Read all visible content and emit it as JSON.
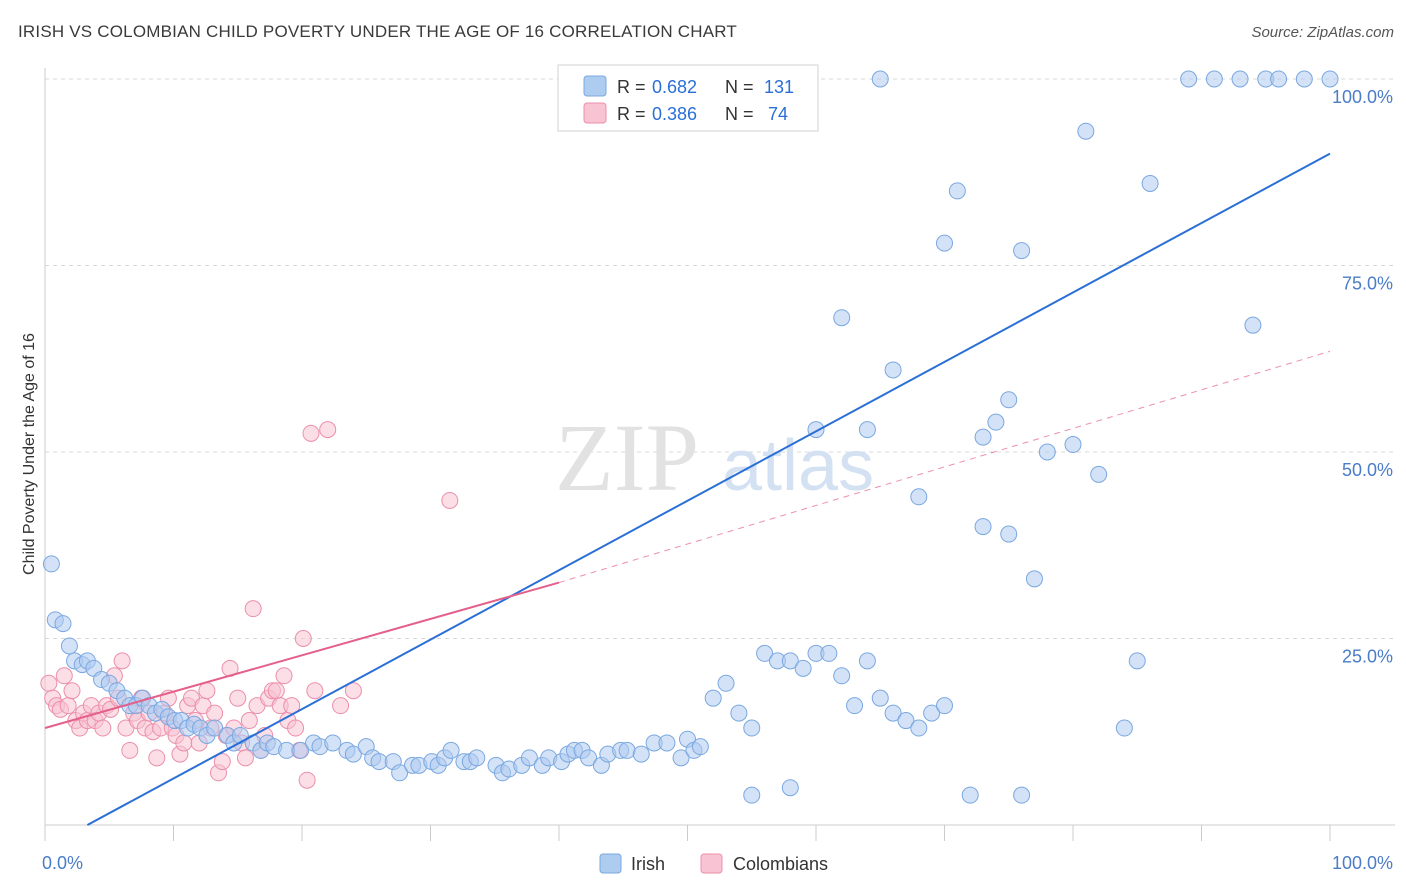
{
  "title": "IRISH VS COLOMBIAN CHILD POVERTY UNDER THE AGE OF 16 CORRELATION CHART",
  "source": "Source: ZipAtlas.com",
  "watermark": {
    "zip": "ZIP",
    "atlas": "atlas"
  },
  "colors": {
    "irish_fill": "#aecbf0",
    "irish_stroke": "#7aa8e0",
    "irish_line": "#2a6fd6",
    "colombian_fill": "#f8c3d2",
    "colombian_stroke": "#ec8fab",
    "colombian_line": "#e4608a",
    "tick_label": "#4a7cc7",
    "grid": "#d8d8d8"
  },
  "legend": {
    "r_label": "R =",
    "n_label": "N =",
    "rows": [
      {
        "r": "0.682",
        "n": "131"
      },
      {
        "r": "0.386",
        "n": "74"
      }
    ]
  },
  "chart_data": {
    "type": "scatter",
    "title": "IRISH VS COLOMBIAN CHILD POVERTY UNDER THE AGE OF 16 CORRELATION CHART",
    "xlabel": "",
    "ylabel": "Child Poverty Under the Age of 16",
    "xlim": [
      0,
      100
    ],
    "ylim": [
      0,
      100
    ],
    "x_tick_labels": [
      "0.0%",
      "100.0%"
    ],
    "y_tick_labels": [
      "100.0%",
      "75.0%",
      "50.0%",
      "25.0%"
    ],
    "y_ticks": [
      100,
      75,
      50,
      25
    ],
    "grid": true,
    "legend_position": "top-center",
    "series": [
      {
        "name": "Irish",
        "trend": {
          "x": [
            3.3,
            100
          ],
          "y": [
            0,
            90
          ]
        },
        "points": [
          [
            0.5,
            35
          ],
          [
            0.8,
            27.5
          ],
          [
            1.4,
            27
          ],
          [
            1.9,
            24
          ],
          [
            2.3,
            22
          ],
          [
            2.9,
            21.5
          ],
          [
            3.3,
            22
          ],
          [
            3.8,
            21
          ],
          [
            4.4,
            19.5
          ],
          [
            5,
            19
          ],
          [
            5.6,
            18
          ],
          [
            6.2,
            17
          ],
          [
            6.6,
            16
          ],
          [
            7.1,
            16
          ],
          [
            7.6,
            17
          ],
          [
            8.1,
            16
          ],
          [
            8.6,
            15
          ],
          [
            9.1,
            15.5
          ],
          [
            9.6,
            14.5
          ],
          [
            10.1,
            14
          ],
          [
            10.6,
            14
          ],
          [
            11.1,
            13
          ],
          [
            11.6,
            13.5
          ],
          [
            12.1,
            13
          ],
          [
            12.6,
            12
          ],
          [
            13.2,
            13
          ],
          [
            14.2,
            12
          ],
          [
            14.7,
            11
          ],
          [
            15.2,
            12
          ],
          [
            16.2,
            11
          ],
          [
            16.8,
            10
          ],
          [
            17.3,
            11
          ],
          [
            17.8,
            10.5
          ],
          [
            18.8,
            10
          ],
          [
            19.9,
            10
          ],
          [
            20.9,
            11
          ],
          [
            21.4,
            10.5
          ],
          [
            22.4,
            11
          ],
          [
            23.5,
            10
          ],
          [
            24,
            9.5
          ],
          [
            25,
            10.5
          ],
          [
            25.5,
            9
          ],
          [
            26,
            8.5
          ],
          [
            27.1,
            8.5
          ],
          [
            27.6,
            7
          ],
          [
            28.6,
            8
          ],
          [
            29.1,
            8
          ],
          [
            30.1,
            8.5
          ],
          [
            30.6,
            8
          ],
          [
            31.1,
            9
          ],
          [
            31.6,
            10
          ],
          [
            32.6,
            8.5
          ],
          [
            33.1,
            8.5
          ],
          [
            33.6,
            9
          ],
          [
            35.1,
            8
          ],
          [
            35.6,
            7
          ],
          [
            36.1,
            7.5
          ],
          [
            37.1,
            8
          ],
          [
            37.7,
            9
          ],
          [
            38.7,
            8
          ],
          [
            39.2,
            9
          ],
          [
            40.2,
            8.5
          ],
          [
            40.7,
            9.5
          ],
          [
            41.2,
            10
          ],
          [
            41.8,
            10
          ],
          [
            42.3,
            9
          ],
          [
            43.3,
            8
          ],
          [
            43.8,
            9.5
          ],
          [
            44.8,
            10
          ],
          [
            45.3,
            10
          ],
          [
            46.4,
            9.5
          ],
          [
            47.4,
            11
          ],
          [
            48.4,
            11
          ],
          [
            49.5,
            9
          ],
          [
            50,
            11.5
          ],
          [
            50.5,
            10
          ],
          [
            51,
            10.5
          ],
          [
            52,
            17
          ],
          [
            53,
            19
          ],
          [
            54,
            15
          ],
          [
            55,
            13
          ],
          [
            56,
            23
          ],
          [
            57,
            22
          ],
          [
            58,
            22
          ],
          [
            59,
            21
          ],
          [
            60,
            23
          ],
          [
            61,
            23
          ],
          [
            62,
            20
          ],
          [
            63,
            16
          ],
          [
            64,
            22
          ],
          [
            65,
            17
          ],
          [
            66,
            15
          ],
          [
            67,
            14
          ],
          [
            68,
            13
          ],
          [
            69,
            15
          ],
          [
            70,
            16
          ],
          [
            73,
            40
          ],
          [
            75,
            39
          ],
          [
            77,
            33
          ],
          [
            80,
            51
          ],
          [
            82,
            47
          ],
          [
            60,
            53
          ],
          [
            62,
            68
          ],
          [
            64,
            53
          ],
          [
            66,
            61
          ],
          [
            68,
            44
          ],
          [
            70,
            78
          ],
          [
            71,
            85
          ],
          [
            73,
            52
          ],
          [
            74,
            54
          ],
          [
            75,
            57
          ],
          [
            76,
            77
          ],
          [
            78,
            50
          ],
          [
            81,
            93
          ],
          [
            86,
            86
          ],
          [
            89,
            100
          ],
          [
            91,
            100
          ],
          [
            93,
            100
          ],
          [
            95,
            100
          ],
          [
            96,
            100
          ],
          [
            98,
            100
          ],
          [
            100,
            100
          ],
          [
            55,
            4
          ],
          [
            58,
            5
          ],
          [
            72,
            4
          ],
          [
            76,
            4
          ],
          [
            84,
            13
          ],
          [
            85,
            22
          ],
          [
            94,
            67
          ],
          [
            65,
            100
          ]
        ]
      },
      {
        "name": "Colombians",
        "trend": {
          "x": [
            0,
            40
          ],
          "y": [
            13,
            32.5
          ],
          "dash_to": [
            100,
            63.5
          ]
        },
        "points": [
          [
            0.3,
            19
          ],
          [
            0.6,
            17
          ],
          [
            0.9,
            16
          ],
          [
            1.2,
            15.5
          ],
          [
            1.5,
            20
          ],
          [
            1.8,
            16
          ],
          [
            2.1,
            18
          ],
          [
            2.4,
            14
          ],
          [
            2.7,
            13
          ],
          [
            3,
            15
          ],
          [
            3.3,
            14
          ],
          [
            3.6,
            16
          ],
          [
            3.9,
            14
          ],
          [
            4.2,
            15
          ],
          [
            4.5,
            13
          ],
          [
            4.8,
            16
          ],
          [
            5.1,
            15.5
          ],
          [
            5.4,
            20
          ],
          [
            5.7,
            17
          ],
          [
            6,
            22
          ],
          [
            6.3,
            13
          ],
          [
            6.6,
            10
          ],
          [
            6.9,
            15
          ],
          [
            7.2,
            14
          ],
          [
            7.5,
            17
          ],
          [
            7.8,
            13
          ],
          [
            8.1,
            15
          ],
          [
            8.4,
            12.5
          ],
          [
            8.7,
            9
          ],
          [
            9,
            13
          ],
          [
            9.3,
            15
          ],
          [
            9.6,
            17
          ],
          [
            9.9,
            13
          ],
          [
            10.2,
            12
          ],
          [
            10.5,
            9.5
          ],
          [
            10.8,
            11
          ],
          [
            11.1,
            16
          ],
          [
            11.4,
            17
          ],
          [
            11.7,
            14
          ],
          [
            12,
            11
          ],
          [
            12.3,
            16
          ],
          [
            12.6,
            18
          ],
          [
            12.9,
            13
          ],
          [
            13.2,
            15
          ],
          [
            13.5,
            7
          ],
          [
            13.8,
            8.5
          ],
          [
            14.1,
            12
          ],
          [
            14.4,
            21
          ],
          [
            14.7,
            13
          ],
          [
            15,
            17
          ],
          [
            15.3,
            11
          ],
          [
            15.6,
            9
          ],
          [
            15.9,
            14
          ],
          [
            16.2,
            29
          ],
          [
            16.5,
            16
          ],
          [
            16.8,
            10
          ],
          [
            17.1,
            12
          ],
          [
            17.4,
            17
          ],
          [
            17.7,
            18
          ],
          [
            18,
            18
          ],
          [
            18.3,
            16
          ],
          [
            18.6,
            20
          ],
          [
            18.9,
            14
          ],
          [
            19.2,
            16
          ],
          [
            19.5,
            13
          ],
          [
            19.8,
            10
          ],
          [
            20.1,
            25
          ],
          [
            20.4,
            6
          ],
          [
            20.7,
            52.5
          ],
          [
            21,
            18
          ],
          [
            22,
            53
          ],
          [
            23,
            16
          ],
          [
            24,
            18
          ],
          [
            31.5,
            43.5
          ]
        ]
      }
    ]
  },
  "bottom_legend": [
    "Irish",
    "Colombians"
  ]
}
